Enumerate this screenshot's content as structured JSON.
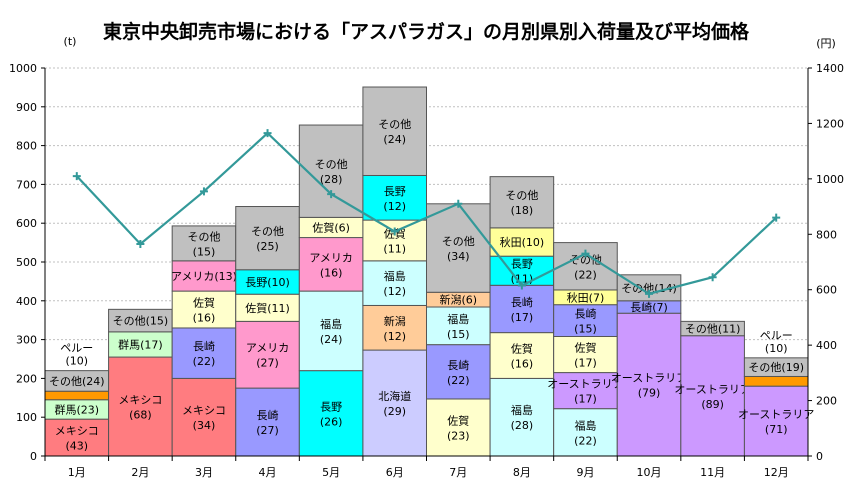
{
  "chart_data": {
    "type": "bar",
    "stacked": true,
    "title": "東京中央卸売市場における「アスパラガス」の月別県別入荷量及び平均価格",
    "ylabel_left": "(t)",
    "ylabel_right": "(円)",
    "ylim_left": [
      0,
      1000
    ],
    "ylim_right": [
      0,
      1400
    ],
    "yticks_left": [
      0,
      100,
      200,
      300,
      400,
      500,
      600,
      700,
      800,
      900,
      1000
    ],
    "yticks_right": [
      0,
      200,
      400,
      600,
      800,
      1000,
      1200,
      1400
    ],
    "grid": true,
    "categories": [
      "1月",
      "2月",
      "3月",
      "4月",
      "5月",
      "6月",
      "7月",
      "8月",
      "9月",
      "10月",
      "11月",
      "12月"
    ],
    "colors": {
      "メキシコ": "#ff7c80",
      "群馬": "#ccffcc",
      "ペルー": "#ff9900",
      "長崎": "#9999ff",
      "佐賀": "#ffffcc",
      "アメリカ": "#ff99cc",
      "長野": "#00ffff",
      "福島": "#ccffff",
      "北海道": "#ccccff",
      "新潟": "#ffcc99",
      "秋田": "#ffff99",
      "オーストラリア": "#cc99ff",
      "その他": "#c0c0c0"
    },
    "bars": [
      {
        "month": "1月",
        "segments": [
          {
            "name": "メキシコ",
            "value": 95,
            "label": "メキシコ",
            "share": "(43)"
          },
          {
            "name": "群馬",
            "value": 50,
            "label": "群馬(23)",
            "share": ""
          },
          {
            "name": "ペルー",
            "value": 22,
            "label": "",
            "share": ""
          },
          {
            "name": "その他",
            "value": 53,
            "label": "その他(24)",
            "share": ""
          }
        ],
        "top_label": "ペルー",
        "top_share": "(10)"
      },
      {
        "month": "2月",
        "segments": [
          {
            "name": "メキシコ",
            "value": 255,
            "label": "メキシコ",
            "share": "(68)"
          },
          {
            "name": "群馬",
            "value": 65,
            "label": "群馬(17)",
            "share": ""
          },
          {
            "name": "その他",
            "value": 58,
            "label": "その他(15)",
            "share": ""
          }
        ]
      },
      {
        "month": "3月",
        "segments": [
          {
            "name": "メキシコ",
            "value": 200,
            "label": "メキシコ",
            "share": "(34)"
          },
          {
            "name": "長崎",
            "value": 130,
            "label": "長崎",
            "share": "(22)"
          },
          {
            "name": "佐賀",
            "value": 95,
            "label": "佐賀",
            "share": "(16)"
          },
          {
            "name": "アメリカ",
            "value": 78,
            "label": "アメリカ(13)",
            "share": ""
          },
          {
            "name": "その他",
            "value": 90,
            "label": "その他",
            "share": "(15)"
          }
        ]
      },
      {
        "month": "4月",
        "segments": [
          {
            "name": "長崎",
            "value": 175,
            "label": "長崎",
            "share": "(27)"
          },
          {
            "name": "アメリカ",
            "value": 172,
            "label": "アメリカ",
            "share": "(27)"
          },
          {
            "name": "佐賀",
            "value": 70,
            "label": "佐賀(11)",
            "share": ""
          },
          {
            "name": "長野",
            "value": 63,
            "label": "長野(10)",
            "share": ""
          },
          {
            "name": "その他",
            "value": 163,
            "label": "その他",
            "share": "(25)"
          }
        ]
      },
      {
        "month": "5月",
        "segments": [
          {
            "name": "長野",
            "value": 220,
            "label": "長野",
            "share": "(26)"
          },
          {
            "name": "福島",
            "value": 205,
            "label": "福島",
            "share": "(24)"
          },
          {
            "name": "アメリカ",
            "value": 138,
            "label": "アメリカ",
            "share": "(16)"
          },
          {
            "name": "佐賀",
            "value": 52,
            "label": "佐賀(6)",
            "share": ""
          },
          {
            "name": "その他",
            "value": 238,
            "label": "その他",
            "share": "(28)"
          }
        ]
      },
      {
        "month": "6月",
        "segments": [
          {
            "name": "北海道",
            "value": 273,
            "label": "北海道",
            "share": "(29)"
          },
          {
            "name": "新潟",
            "value": 115,
            "label": "新潟",
            "share": "(12)"
          },
          {
            "name": "福島",
            "value": 115,
            "label": "福島",
            "share": "(12)"
          },
          {
            "name": "佐賀",
            "value": 105,
            "label": "佐賀",
            "share": "(11)"
          },
          {
            "name": "長野",
            "value": 115,
            "label": "長野",
            "share": "(12)"
          },
          {
            "name": "その他",
            "value": 228,
            "label": "その他",
            "share": "(24)"
          }
        ]
      },
      {
        "month": "7月",
        "segments": [
          {
            "name": "佐賀",
            "value": 147,
            "label": "佐賀",
            "share": "(23)"
          },
          {
            "name": "長崎",
            "value": 140,
            "label": "長崎",
            "share": "(22)"
          },
          {
            "name": "福島",
            "value": 97,
            "label": "福島",
            "share": "(15)"
          },
          {
            "name": "新潟",
            "value": 38,
            "label": "新潟(6)",
            "share": ""
          },
          {
            "name": "その他",
            "value": 228,
            "label": "その他",
            "share": "(34)"
          }
        ]
      },
      {
        "month": "8月",
        "segments": [
          {
            "name": "福島",
            "value": 200,
            "label": "福島",
            "share": "(28)"
          },
          {
            "name": "佐賀",
            "value": 118,
            "label": "佐賀",
            "share": "(16)"
          },
          {
            "name": "長崎",
            "value": 122,
            "label": "長崎",
            "share": "(17)"
          },
          {
            "name": "長野",
            "value": 75,
            "label": "長野",
            "share": "(11)"
          },
          {
            "name": "秋田",
            "value": 73,
            "label": "秋田(10)",
            "share": ""
          },
          {
            "name": "その他",
            "value": 132,
            "label": "その他",
            "share": "(18)"
          }
        ]
      },
      {
        "month": "9月",
        "segments": [
          {
            "name": "福島",
            "value": 122,
            "label": "福島",
            "share": "(22)"
          },
          {
            "name": "オーストラリア",
            "value": 93,
            "label": "オーストラリア",
            "share": "(17)"
          },
          {
            "name": "佐賀",
            "value": 93,
            "label": "佐賀",
            "share": "(17)"
          },
          {
            "name": "長崎",
            "value": 82,
            "label": "長崎",
            "share": "(15)"
          },
          {
            "name": "秋田",
            "value": 38,
            "label": "秋田(7)",
            "share": ""
          },
          {
            "name": "その他",
            "value": 122,
            "label": "その他",
            "share": "(22)"
          }
        ]
      },
      {
        "month": "10月",
        "segments": [
          {
            "name": "オーストラリア",
            "value": 368,
            "label": "オーストラリア",
            "share": "(79)"
          },
          {
            "name": "長崎",
            "value": 32,
            "label": "長崎(7)",
            "share": ""
          },
          {
            "name": "その他",
            "value": 67,
            "label": "その他(14)",
            "share": ""
          }
        ]
      },
      {
        "month": "11月",
        "segments": [
          {
            "name": "オーストラリア",
            "value": 310,
            "label": "オーストラリア",
            "share": "(89)"
          },
          {
            "name": "その他",
            "value": 37,
            "label": "その他(11)",
            "share": ""
          }
        ]
      },
      {
        "month": "12月",
        "segments": [
          {
            "name": "オーストラリア",
            "value": 180,
            "label": "オーストラリア",
            "share": "(71)"
          },
          {
            "name": "ペルー",
            "value": 25,
            "label": "",
            "share": ""
          },
          {
            "name": "その他",
            "value": 48,
            "label": "その他(19)",
            "share": ""
          }
        ],
        "top_label": "ペルー",
        "top_share": "(10)"
      }
    ],
    "price_series": {
      "axis": "right",
      "color": "#339999",
      "values": [
        1010,
        765,
        955,
        1165,
        945,
        810,
        910,
        615,
        730,
        585,
        645,
        860
      ]
    }
  }
}
